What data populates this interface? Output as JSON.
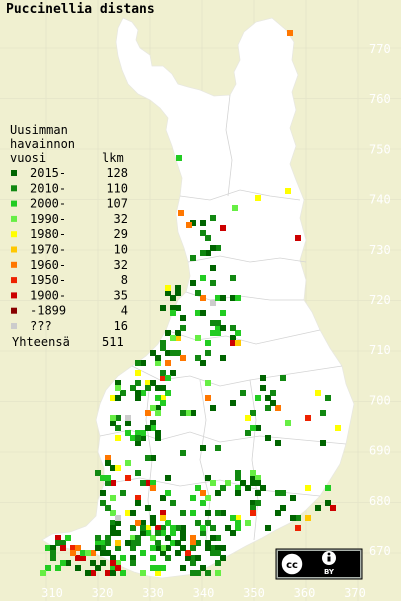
{
  "title": "Puccinellia distans",
  "legend": {
    "heading": [
      "Uusimman",
      "havainnon"
    ],
    "col_year": "vuosi",
    "col_count": "lkm",
    "rows": [
      {
        "label": "2015-",
        "count": "128",
        "color": "#006400"
      },
      {
        "label": "2010-",
        "count": "110",
        "color": "#118811"
      },
      {
        "label": "2000-",
        "count": "107",
        "color": "#22cc22"
      },
      {
        "label": "1990-",
        "count": "32",
        "color": "#66ee44"
      },
      {
        "label": "1980-",
        "count": "29",
        "color": "#ffff00"
      },
      {
        "label": "1970-",
        "count": "10",
        "color": "#ffc800"
      },
      {
        "label": "1960-",
        "count": "32",
        "color": "#ff7700"
      },
      {
        "label": "1950-",
        "count": "8",
        "color": "#ee2200"
      },
      {
        "label": "1900-",
        "count": "35",
        "color": "#cc0000"
      },
      {
        "label": "-1899",
        "count": "4",
        "color": "#880000"
      },
      {
        "label": "???",
        "count": "16",
        "color": "#cccccc"
      }
    ],
    "total_label": "Yhteensä",
    "total_count": "511"
  },
  "axes": {
    "x_ticks": [
      "310",
      "320",
      "330",
      "340",
      "350",
      "360",
      "370"
    ],
    "y_ticks": [
      "770",
      "760",
      "750",
      "740",
      "730",
      "720",
      "710",
      "700",
      "690",
      "680",
      "670"
    ]
  },
  "colors": {
    "background": "#f0f0d0",
    "land": "#ffffff",
    "grid": "#e0e0c0",
    "border": "#d8d8d8"
  },
  "license_badge": {
    "cc": "cc",
    "by": "BY"
  }
}
